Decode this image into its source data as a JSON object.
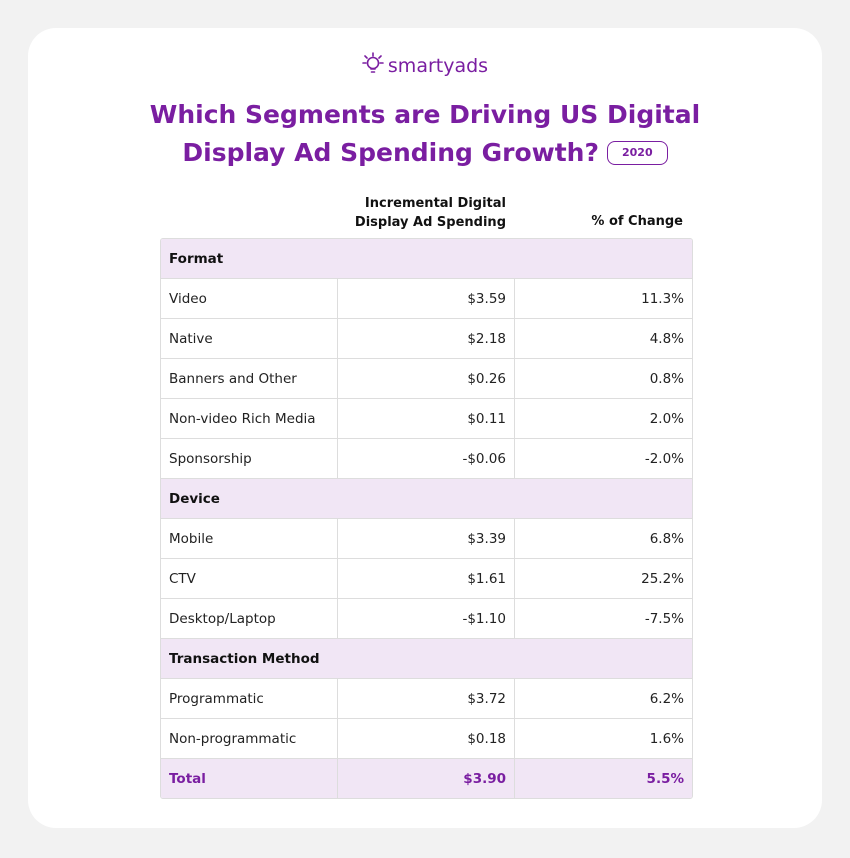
{
  "logo": "smartyads",
  "title": "Which Segments are Driving US Digital Display Ad Spending Growth?",
  "badge": "2020",
  "table": {
    "columns": [
      "Incremental Digital Display Ad Spending",
      "% of Change"
    ],
    "sections": [
      {
        "name": "Format",
        "rows": [
          [
            "Video",
            "$3.59",
            "11.3%"
          ],
          [
            "Native",
            "$2.18",
            "4.8%"
          ],
          [
            "Banners and Other",
            "$0.26",
            "0.8%"
          ],
          [
            "Non-video Rich Media",
            "$0.11",
            "2.0%"
          ],
          [
            "Sponsorship",
            "-$0.06",
            "-2.0%"
          ]
        ]
      },
      {
        "name": "Device",
        "rows": [
          [
            "Mobile",
            "$3.39",
            "6.8%"
          ],
          [
            "CTV",
            "$1.61",
            "25.2%"
          ],
          [
            "Desktop/Laptop",
            "-$1.10",
            "-7.5%"
          ]
        ]
      },
      {
        "name": "Transaction Method",
        "rows": [
          [
            "Programmatic",
            "$3.72",
            "6.2%"
          ],
          [
            "Non-programmatic",
            "$0.18",
            "1.6%"
          ]
        ]
      }
    ],
    "total": [
      "Total",
      "$3.90",
      "5.5%"
    ]
  }
}
